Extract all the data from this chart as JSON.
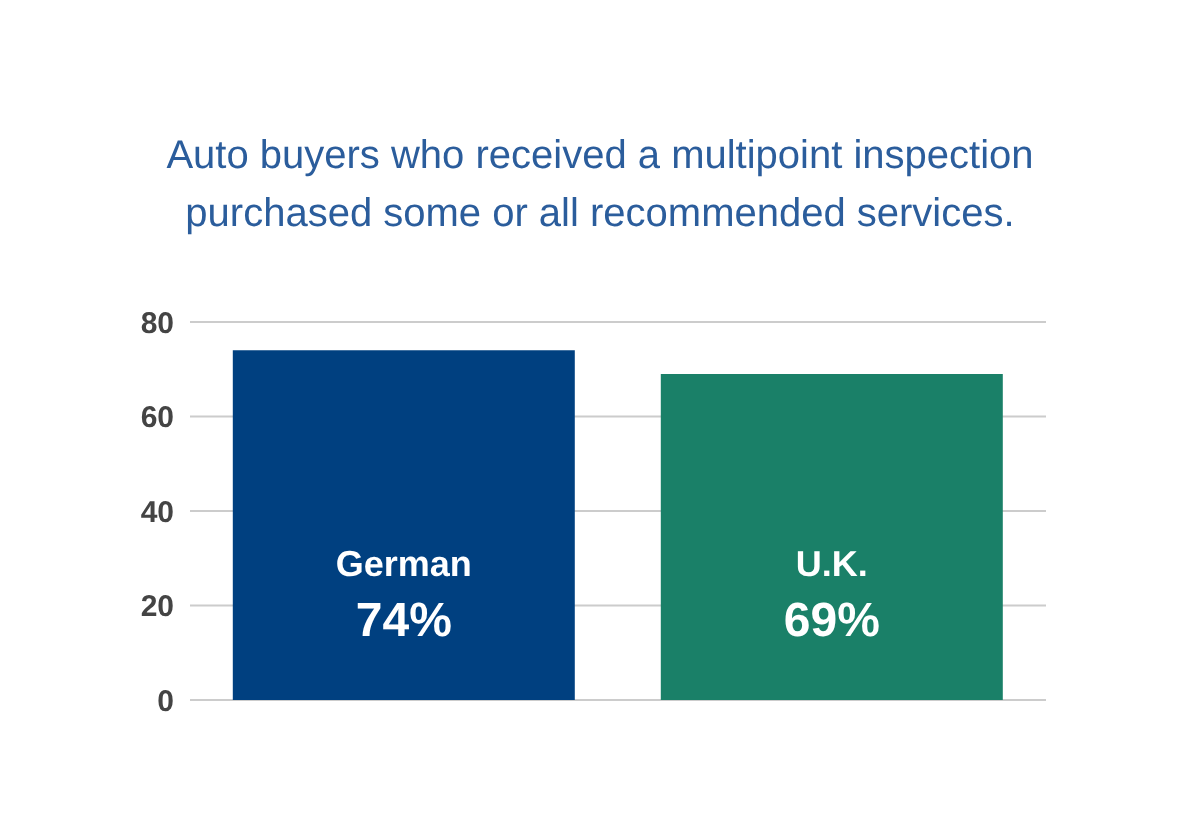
{
  "chart_data": {
    "type": "bar",
    "title": "Auto buyers who received a multipoint inspection purchased some or all recommended services.",
    "categories": [
      "German",
      "U.K."
    ],
    "values": [
      74,
      69
    ],
    "colors": [
      "#004080",
      "#1a8068"
    ],
    "value_labels": [
      "74%",
      "69%"
    ],
    "ylim": [
      0,
      80
    ],
    "yticks": [
      0,
      20,
      40,
      60,
      80
    ],
    "grid": "y"
  }
}
